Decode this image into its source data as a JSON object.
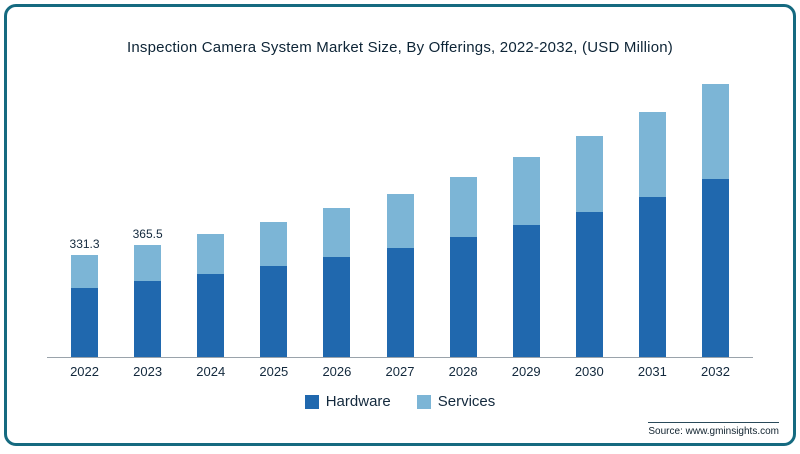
{
  "chart_data": {
    "type": "bar",
    "stacked": true,
    "title": "Inspection Camera System Market Size, By Offerings, 2022-2032, (USD Million)",
    "categories": [
      "2022",
      "2023",
      "2024",
      "2025",
      "2026",
      "2027",
      "2028",
      "2029",
      "2030",
      "2031",
      "2032"
    ],
    "series": [
      {
        "name": "Hardware",
        "color": "#2068ae",
        "values": [
          225,
          248,
          270,
          297,
          325,
          356,
          392,
          430,
          473,
          521,
          578
        ]
      },
      {
        "name": "Services",
        "color": "#7cb5d6",
        "values": [
          106.3,
          117.5,
          130,
          143,
          158,
          176,
          196,
          220,
          246,
          277,
          308
        ]
      }
    ],
    "totals": [
      331.3,
      365.5,
      400,
      440,
      483,
      532,
      588,
      650,
      719,
      798,
      886
    ],
    "data_labels": {
      "2022": "331.3",
      "2023": "365.5"
    },
    "ylim": [
      0,
      950
    ],
    "legend_position": "bottom",
    "grid": false,
    "xlabel": "",
    "ylabel": ""
  },
  "source": {
    "label": "Source: www.gminsights.com"
  }
}
